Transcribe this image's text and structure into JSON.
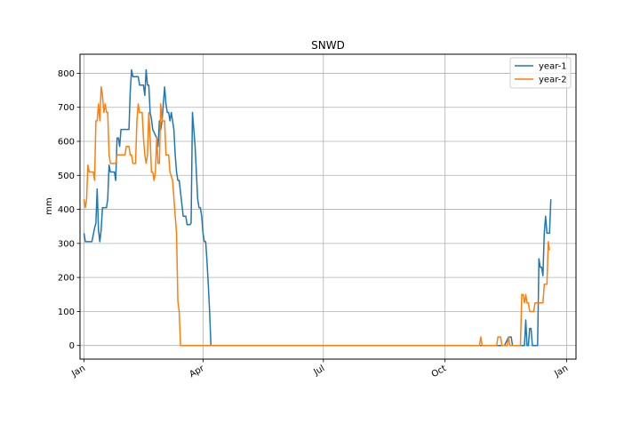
{
  "chart_data": {
    "type": "line",
    "title": "SNWD",
    "xlabel": "",
    "ylabel": "mm",
    "x_unit": "day_of_year",
    "xlim": [
      -3,
      372
    ],
    "ylim": [
      -40,
      856
    ],
    "grid": true,
    "legend_position": "top-right",
    "x_ticks": [
      {
        "value": 0,
        "label": "Jan"
      },
      {
        "value": 90,
        "label": "Apr"
      },
      {
        "value": 181,
        "label": "Jul"
      },
      {
        "value": 273,
        "label": "Oct"
      },
      {
        "value": 365,
        "label": "Jan"
      }
    ],
    "y_ticks": [
      0,
      100,
      200,
      300,
      400,
      500,
      600,
      700,
      800
    ],
    "series": [
      {
        "name": "year-1",
        "color": "#1f77b4",
        "points": [
          [
            0,
            330
          ],
          [
            1,
            305
          ],
          [
            3,
            305
          ],
          [
            6,
            305
          ],
          [
            8,
            345
          ],
          [
            9,
            360
          ],
          [
            10,
            460
          ],
          [
            11,
            340
          ],
          [
            12,
            305
          ],
          [
            13,
            340
          ],
          [
            14,
            405
          ],
          [
            16,
            405
          ],
          [
            17,
            405
          ],
          [
            18,
            430
          ],
          [
            19,
            530
          ],
          [
            20,
            510
          ],
          [
            23,
            510
          ],
          [
            24,
            485
          ],
          [
            25,
            610
          ],
          [
            26,
            610
          ],
          [
            27,
            585
          ],
          [
            28,
            635
          ],
          [
            34,
            635
          ],
          [
            35,
            745
          ],
          [
            36,
            810
          ],
          [
            37,
            790
          ],
          [
            41,
            790
          ],
          [
            42,
            765
          ],
          [
            45,
            765
          ],
          [
            46,
            735
          ],
          [
            47,
            810
          ],
          [
            48,
            765
          ],
          [
            49,
            765
          ],
          [
            50,
            685
          ],
          [
            51,
            665
          ],
          [
            52,
            635
          ],
          [
            55,
            610
          ],
          [
            56,
            585
          ],
          [
            57,
            660
          ],
          [
            58,
            635
          ],
          [
            59,
            660
          ],
          [
            61,
            760
          ],
          [
            62,
            710
          ],
          [
            63,
            685
          ],
          [
            64,
            685
          ],
          [
            65,
            660
          ],
          [
            66,
            685
          ],
          [
            68,
            635
          ],
          [
            69,
            560
          ],
          [
            70,
            510
          ],
          [
            71,
            485
          ],
          [
            72,
            485
          ],
          [
            75,
            380
          ],
          [
            77,
            380
          ],
          [
            78,
            355
          ],
          [
            80,
            355
          ],
          [
            81,
            360
          ],
          [
            82,
            685
          ],
          [
            84,
            585
          ],
          [
            86,
            430
          ],
          [
            87,
            405
          ],
          [
            88,
            405
          ],
          [
            89,
            380
          ],
          [
            90,
            330
          ],
          [
            91,
            305
          ],
          [
            92,
            305
          ],
          [
            93,
            250
          ],
          [
            94,
            180
          ],
          [
            95,
            100
          ],
          [
            96,
            0
          ],
          [
            317,
            0
          ],
          [
            318,
            0
          ],
          [
            321,
            25
          ],
          [
            323,
            25
          ],
          [
            324,
            0
          ],
          [
            333,
            0
          ],
          [
            334,
            75
          ],
          [
            335,
            0
          ],
          [
            336,
            0
          ],
          [
            337,
            50
          ],
          [
            338,
            50
          ],
          [
            339,
            0
          ],
          [
            343,
            0
          ],
          [
            344,
            255
          ],
          [
            345,
            230
          ],
          [
            346,
            230
          ],
          [
            347,
            205
          ],
          [
            348,
            330
          ],
          [
            349,
            380
          ],
          [
            350,
            330
          ],
          [
            352,
            330
          ],
          [
            353,
            430
          ]
        ]
      },
      {
        "name": "year-2",
        "color": "#ff7f0e",
        "points": [
          [
            0,
            430
          ],
          [
            1,
            405
          ],
          [
            2,
            430
          ],
          [
            3,
            530
          ],
          [
            4,
            510
          ],
          [
            7,
            510
          ],
          [
            8,
            485
          ],
          [
            9,
            660
          ],
          [
            10,
            660
          ],
          [
            11,
            710
          ],
          [
            12,
            660
          ],
          [
            13,
            760
          ],
          [
            14,
            735
          ],
          [
            15,
            685
          ],
          [
            16,
            710
          ],
          [
            17,
            685
          ],
          [
            18,
            685
          ],
          [
            19,
            560
          ],
          [
            20,
            535
          ],
          [
            24,
            535
          ],
          [
            25,
            560
          ],
          [
            31,
            560
          ],
          [
            32,
            585
          ],
          [
            34,
            585
          ],
          [
            35,
            560
          ],
          [
            36,
            560
          ],
          [
            37,
            535
          ],
          [
            39,
            535
          ],
          [
            40,
            660
          ],
          [
            41,
            710
          ],
          [
            42,
            685
          ],
          [
            44,
            685
          ],
          [
            45,
            610
          ],
          [
            46,
            560
          ],
          [
            47,
            535
          ],
          [
            48,
            560
          ],
          [
            49,
            685
          ],
          [
            50,
            610
          ],
          [
            51,
            510
          ],
          [
            52,
            510
          ],
          [
            53,
            485
          ],
          [
            54,
            510
          ],
          [
            55,
            610
          ],
          [
            56,
            535
          ],
          [
            57,
            535
          ],
          [
            58,
            710
          ],
          [
            59,
            660
          ],
          [
            61,
            660
          ],
          [
            62,
            560
          ],
          [
            64,
            560
          ],
          [
            65,
            510
          ],
          [
            67,
            485
          ],
          [
            69,
            380
          ],
          [
            70,
            330
          ],
          [
            71,
            130
          ],
          [
            72,
            100
          ],
          [
            73,
            0
          ],
          [
            299,
            0
          ],
          [
            300,
            25
          ],
          [
            301,
            0
          ],
          [
            312,
            0
          ],
          [
            313,
            25
          ],
          [
            315,
            25
          ],
          [
            316,
            0
          ],
          [
            320,
            0
          ],
          [
            321,
            25
          ],
          [
            322,
            0
          ],
          [
            330,
            0
          ],
          [
            331,
            150
          ],
          [
            332,
            150
          ],
          [
            333,
            125
          ],
          [
            334,
            150
          ],
          [
            335,
            125
          ],
          [
            336,
            125
          ],
          [
            337,
            100
          ],
          [
            340,
            100
          ],
          [
            341,
            125
          ],
          [
            344,
            125
          ],
          [
            345,
            125
          ],
          [
            346,
            125
          ],
          [
            347,
            125
          ],
          [
            348,
            180
          ],
          [
            350,
            180
          ],
          [
            351,
            305
          ],
          [
            352,
            280
          ]
        ]
      }
    ]
  }
}
